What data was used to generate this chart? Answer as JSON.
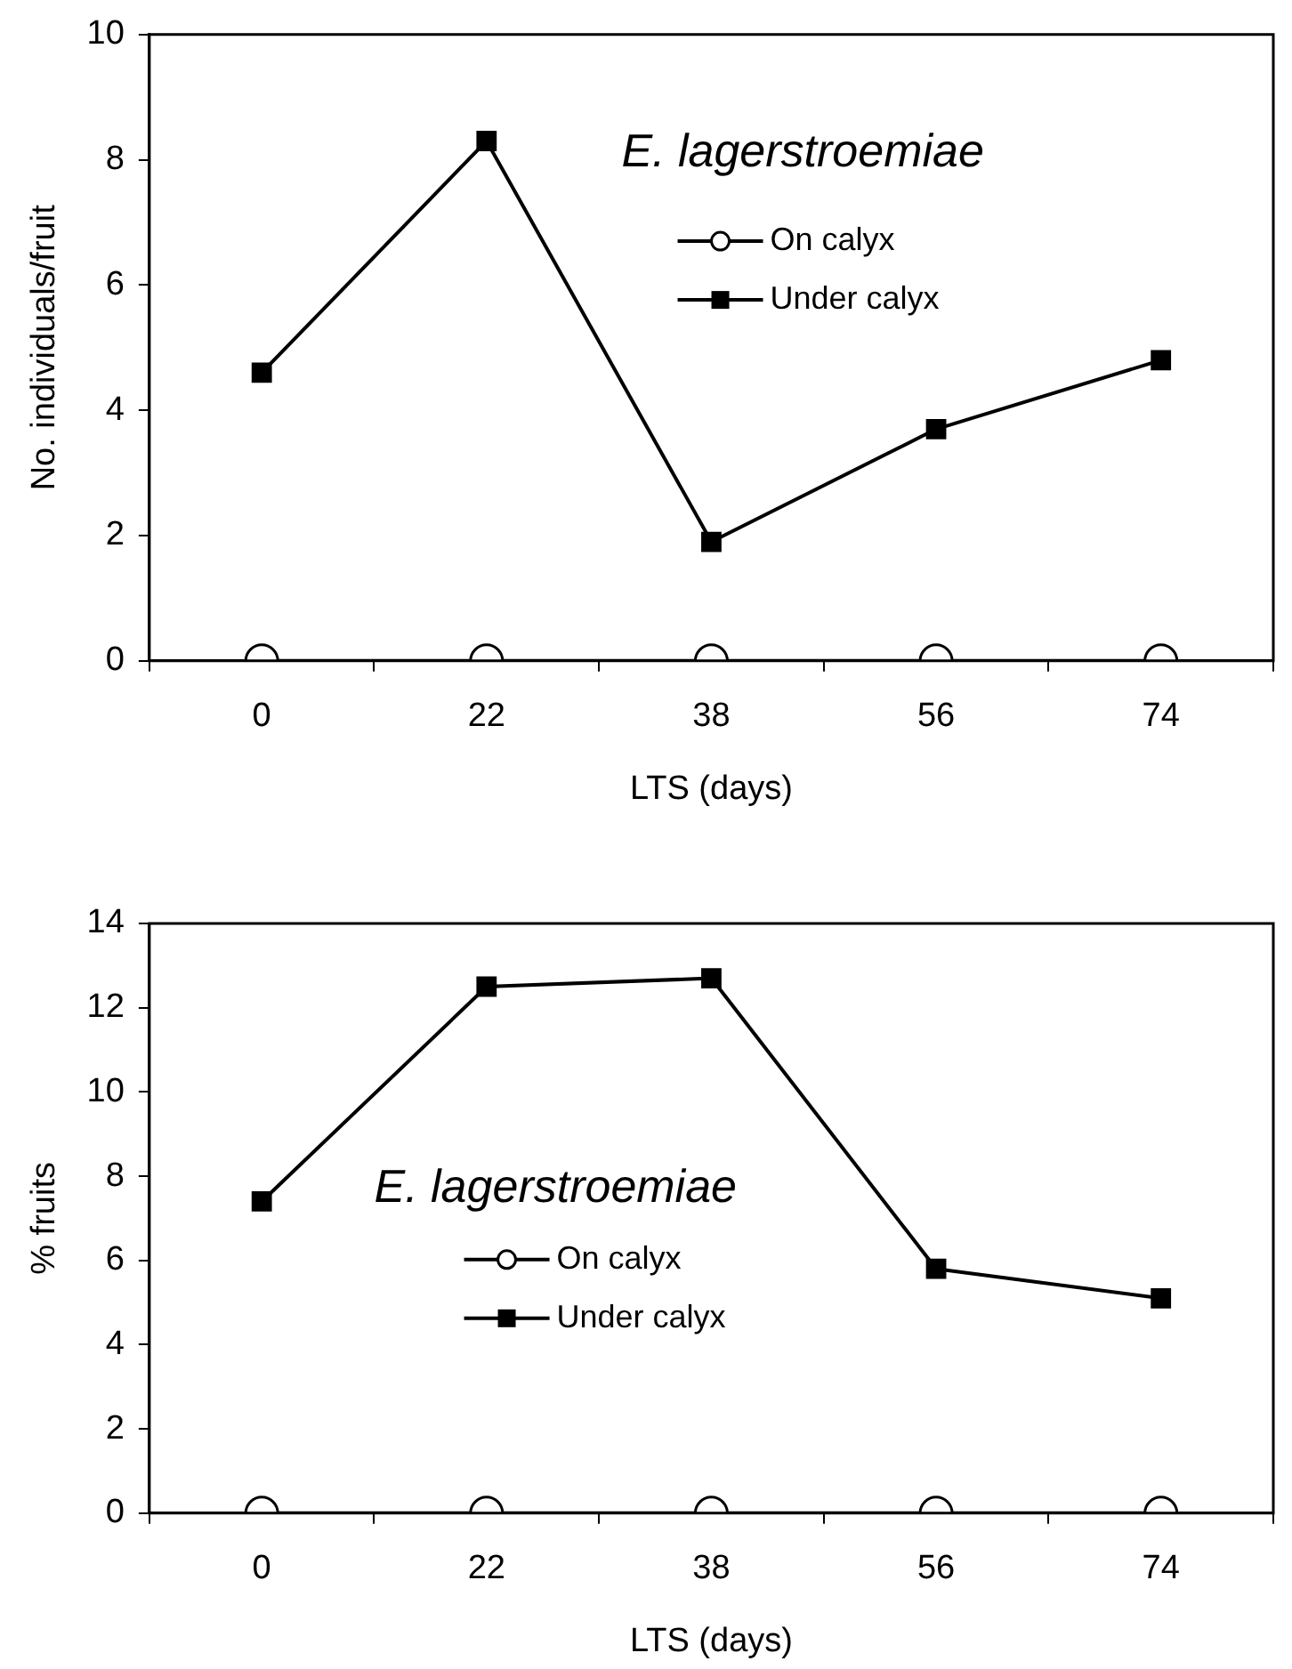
{
  "chart_data": [
    {
      "type": "line",
      "categories": [
        "0",
        "22",
        "38",
        "56",
        "74"
      ],
      "xlabel": "LTS (days)",
      "ylabel": "No. individuals/fruit",
      "ylim": [
        0,
        10
      ],
      "yticks": [
        0,
        2,
        4,
        6,
        8,
        10
      ],
      "annotations": [
        "E. lagerstroemiae"
      ],
      "legend": "top right",
      "grid": false,
      "series": [
        {
          "name": "On calyx",
          "color": "#000000",
          "marker": "circle",
          "values": [
            0,
            0,
            0,
            0,
            0
          ]
        },
        {
          "name": "Under calyx",
          "color": "#000000",
          "marker": "square",
          "values": [
            4.6,
            8.3,
            1.9,
            3.7,
            4.8
          ]
        }
      ]
    },
    {
      "type": "line",
      "categories": [
        "0",
        "22",
        "38",
        "56",
        "74"
      ],
      "xlabel": "LTS (days)",
      "ylabel": "% fruits",
      "ylim": [
        0,
        14
      ],
      "yticks": [
        0,
        2,
        4,
        6,
        8,
        10,
        12,
        14
      ],
      "annotations": [
        "E. lagerstroemiae"
      ],
      "legend": "center",
      "grid": false,
      "series": [
        {
          "name": "On calyx",
          "color": "#000000",
          "marker": "circle",
          "values": [
            0,
            0,
            0,
            0,
            0
          ]
        },
        {
          "name": "Under calyx",
          "color": "#000000",
          "marker": "square",
          "values": [
            7.4,
            12.5,
            12.7,
            5.8,
            5.1
          ]
        }
      ]
    }
  ]
}
